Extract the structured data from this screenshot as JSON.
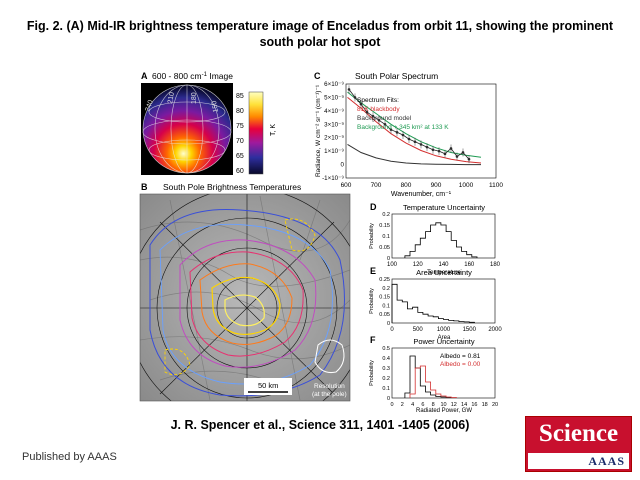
{
  "slide": {
    "title": "Fig. 2. (A) Mid-IR brightness temperature image of Enceladus from orbit 11, showing the prominent south polar hot spot",
    "citation": "J. R.  Spencer et al.,  Science  311, 1401 -1405 (2006)",
    "published": "Published by AAAS",
    "logo_word": "Science",
    "logo_sub": "AAAS"
  },
  "panelA": {
    "letter": "A",
    "label": "600 - 800 cm",
    "label_sup": "-1",
    "label_tail": " Image",
    "axis_label": "T, K",
    "colorbar_ticks": [
      "85",
      "80",
      "75",
      "70",
      "65",
      "60"
    ]
  },
  "panelB": {
    "letter": "B",
    "title": "South Pole Brightness Temperatures",
    "scale_label": "50 km",
    "resolution_label": [
      "Resolution",
      "(at the pole)"
    ]
  },
  "panelC": {
    "letter": "C",
    "title": "South Polar Spectrum",
    "legend": {
      "header": "Spectrum Fits:",
      "items": [
        {
          "label": "81K blackbody",
          "color": "#d32f2f"
        },
        {
          "label": "Background model",
          "color": "#333333"
        },
        {
          "label": "Background + 345 km² at 133 K",
          "color": "#1e9a52"
        }
      ]
    }
  },
  "panelD": {
    "letter": "D"
  },
  "panelE": {
    "letter": "E"
  },
  "panelF": {
    "letter": "F",
    "albedo_items": [
      {
        "label": "Albedo = 0.81",
        "color": "#000000"
      },
      {
        "label": "Albedo = 0.00",
        "color": "#d32f2f"
      }
    ]
  },
  "chart_data": [
    {
      "type": "line",
      "title": "South Polar Spectrum",
      "xlabel": "Wavenumber, cm⁻¹",
      "ylabel": "Radiance, W cm⁻² sr⁻¹ (cm⁻¹)⁻¹",
      "xlim": [
        600,
        1100
      ],
      "ylim": [
        -1e-09,
        6e-09
      ],
      "x_ticks": [
        "600",
        "700",
        "800",
        "900",
        "1000",
        "1100"
      ],
      "y_ticks": [
        "-1×10⁻⁹",
        "0",
        "1×10⁻⁹",
        "2×10⁻⁹",
        "3×10⁻⁹",
        "4×10⁻⁹",
        "5×10⁻⁹",
        "6×10⁻⁹"
      ],
      "series": [
        {
          "name": "81K blackbody",
          "color": "#d32f2f",
          "x": [
            605,
            650,
            700,
            750,
            800,
            850,
            900,
            950,
            1000,
            1050
          ],
          "y": [
            5e-09,
            4.2e-09,
            3.2e-09,
            2.3e-09,
            1.6e-09,
            1.05e-09,
            6.5e-10,
            4e-10,
            2.2e-10,
            1.2e-10
          ]
        },
        {
          "name": "Background model",
          "color": "#333333",
          "x": [
            605,
            650,
            700,
            750,
            800,
            850,
            900,
            950,
            1000,
            1050
          ],
          "y": [
            1.5e-09,
            9e-10,
            5e-10,
            2.5e-10,
            1.2e-10,
            5e-11,
            2e-11,
            1e-11,
            0.0,
            0.0
          ]
        },
        {
          "name": "Background + 345 km² at 133 K",
          "color": "#1e9a52",
          "x": [
            605,
            650,
            700,
            750,
            800,
            850,
            900,
            950,
            1000,
            1050
          ],
          "y": [
            5.4e-09,
            4.6e-09,
            3.8e-09,
            3e-09,
            2.3e-09,
            1.7e-09,
            1.25e-09,
            9e-10,
            7e-10,
            5.5e-10
          ]
        },
        {
          "name": "",
          "color": "#222222",
          "x": [
            610,
            630,
            650,
            670,
            690,
            710,
            730,
            750,
            770,
            790,
            810,
            830,
            850,
            870,
            890,
            910,
            930,
            950,
            970,
            990,
            1010
          ],
          "y": [
            5.6e-09,
            5e-09,
            4.5e-09,
            3.9e-09,
            3.6e-09,
            3.3e-09,
            3e-09,
            2.6e-09,
            2.4e-09,
            2.2e-09,
            1.9e-09,
            1.7e-09,
            1.5e-09,
            1.3e-09,
            1.1e-09,
            1e-09,
            8e-10,
            1.2e-09,
            6e-10,
            9e-10,
            4e-10
          ]
        }
      ]
    },
    {
      "type": "bar",
      "title": "Temperature Uncertainty",
      "xlabel": "Temperature",
      "ylabel": "Probability",
      "xlim": [
        100,
        180
      ],
      "ylim": [
        0,
        0.2
      ],
      "x_ticks": [
        "100",
        "120",
        "140",
        "160",
        "180"
      ],
      "y_ticks": [
        "0",
        "0.05",
        "0.1",
        "0.15",
        "0.2"
      ],
      "bins": [
        112,
        116,
        120,
        124,
        128,
        132,
        136,
        140,
        144,
        148,
        152,
        156,
        160,
        164
      ],
      "values": [
        0.01,
        0.03,
        0.06,
        0.09,
        0.12,
        0.15,
        0.16,
        0.15,
        0.12,
        0.08,
        0.05,
        0.03,
        0.015,
        0.005
      ]
    },
    {
      "type": "bar",
      "title": "Area Uncertainty",
      "xlabel": "Area",
      "ylabel": "Probability",
      "xlim": [
        0,
        2000
      ],
      "ylim": [
        0,
        0.25
      ],
      "x_ticks": [
        "0",
        "500",
        "1000",
        "1500",
        "2000"
      ],
      "y_ticks": [
        "0",
        "0.05",
        "0.1",
        "0.15",
        "0.2",
        "0.25"
      ],
      "bins": [
        50,
        150,
        250,
        350,
        450,
        550,
        650,
        750,
        850,
        950,
        1050,
        1150,
        1250,
        1350,
        1450,
        1550
      ],
      "values": [
        0.22,
        0.13,
        0.12,
        0.08,
        0.09,
        0.06,
        0.05,
        0.04,
        0.035,
        0.025,
        0.02,
        0.015,
        0.012,
        0.008,
        0.006,
        0.004
      ]
    },
    {
      "type": "bar",
      "title": "Power Uncertainty",
      "xlabel": "Radiated Power, GW",
      "ylabel": "Probability",
      "xlim": [
        0,
        20
      ],
      "ylim": [
        0,
        0.5
      ],
      "x_ticks": [
        "0",
        "2",
        "4",
        "6",
        "8",
        "10",
        "12",
        "14",
        "16",
        "18",
        "20"
      ],
      "y_ticks": [
        "0",
        "0.1",
        "0.2",
        "0.3",
        "0.4",
        "0.5"
      ],
      "series": [
        {
          "name": "Albedo = 0.81",
          "color": "#000000",
          "bins": [
            3,
            4,
            5,
            6,
            7,
            8,
            9,
            10,
            11
          ],
          "values": [
            0.05,
            0.42,
            0.3,
            0.12,
            0.06,
            0.03,
            0.015,
            0.01,
            0.005
          ]
        },
        {
          "name": "Albedo = 0.00",
          "color": "#d32f2f",
          "bins": [
            4,
            5,
            6,
            7,
            8,
            9,
            10,
            11,
            12
          ],
          "values": [
            0.04,
            0.3,
            0.32,
            0.16,
            0.08,
            0.04,
            0.02,
            0.01,
            0.005
          ]
        }
      ]
    }
  ]
}
